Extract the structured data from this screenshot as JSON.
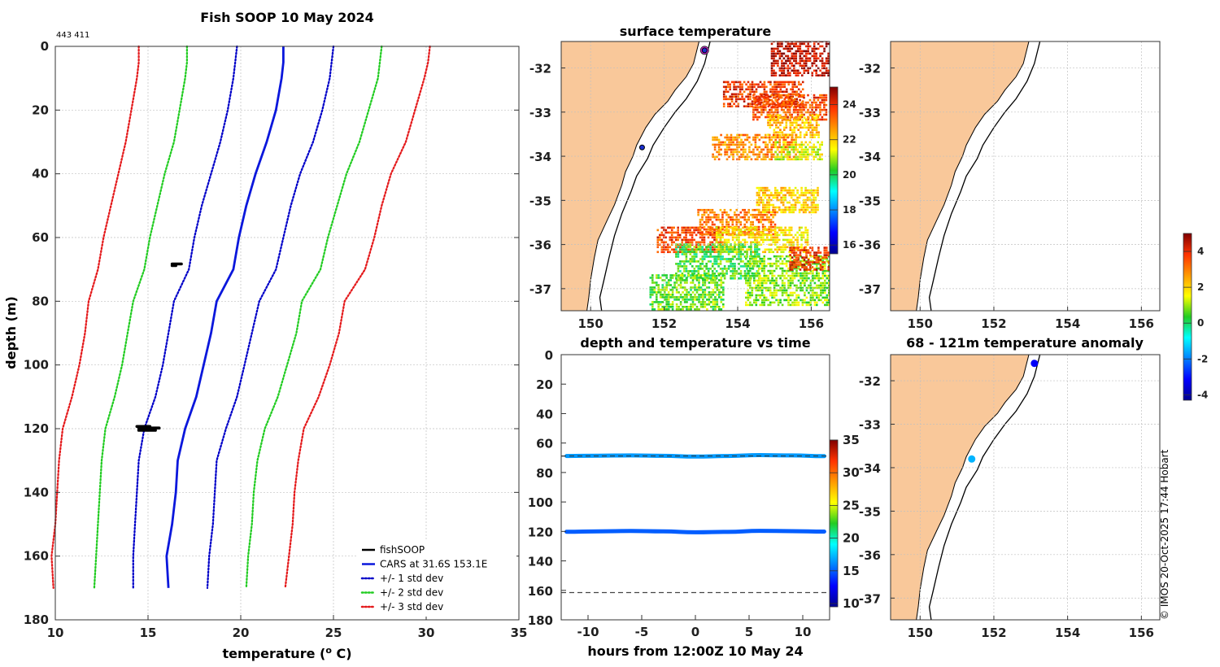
{
  "colors": {
    "land": "#f9c89a",
    "grid": "#c0c0c0",
    "cars": "#0a17dc",
    "sd1": "#0000c8",
    "sd2": "#22cc22",
    "sd3": "#e41a1c",
    "obs": "#000000",
    "time_series": "#2aa7df"
  },
  "chart_data": [
    {
      "type": "line",
      "id": "profile",
      "title": "Fish SOOP 10 May 2024",
      "annotation": "443 411",
      "xlabel": "temperature (",
      "xlabel_sup": "o",
      "xlabel_tail": " C)",
      "ylabel": "depth (m)",
      "xlim": [
        10,
        35
      ],
      "ylim": [
        0,
        180
      ],
      "xticks": [
        10,
        15,
        20,
        25,
        30,
        35
      ],
      "yticks": [
        0,
        20,
        40,
        60,
        80,
        100,
        120,
        140,
        160,
        180
      ],
      "depths": [
        0,
        5,
        10,
        20,
        30,
        40,
        50,
        60,
        70,
        80,
        90,
        100,
        110,
        120,
        130,
        140,
        150,
        160,
        170
      ],
      "series": [
        {
          "name": "CARS at 31.6S 153.1E",
          "style": "solid",
          "color": "#0a17dc",
          "values": [
            22.3,
            22.3,
            22.2,
            21.9,
            21.4,
            20.8,
            20.3,
            19.9,
            19.6,
            18.7,
            18.4,
            18.0,
            17.6,
            17.0,
            16.6,
            16.5,
            16.3,
            16.0,
            16.1
          ]
        },
        {
          "name": "+1 std dev",
          "style": "dotted",
          "color": "#0000c8",
          "values": [
            25.0,
            24.9,
            24.8,
            24.4,
            23.9,
            23.2,
            22.7,
            22.3,
            21.9,
            21.0,
            20.6,
            20.2,
            19.8,
            19.2,
            18.7,
            18.6,
            18.5,
            18.3,
            18.2
          ]
        },
        {
          "name": "-1 std dev",
          "style": "dotted",
          "color": "#0000c8",
          "values": [
            19.8,
            19.7,
            19.6,
            19.3,
            18.9,
            18.4,
            17.9,
            17.5,
            17.2,
            16.4,
            16.1,
            15.8,
            15.4,
            14.8,
            14.5,
            14.4,
            14.3,
            14.2,
            14.2
          ]
        },
        {
          "name": "+2 std dev",
          "style": "dotted",
          "color": "#22cc22",
          "values": [
            27.6,
            27.5,
            27.4,
            26.9,
            26.4,
            25.7,
            25.2,
            24.7,
            24.3,
            23.3,
            23.0,
            22.5,
            22.0,
            21.3,
            20.9,
            20.7,
            20.6,
            20.4,
            20.3
          ]
        },
        {
          "name": "-2 std dev",
          "style": "dotted",
          "color": "#22cc22",
          "values": [
            17.1,
            17.1,
            17.0,
            16.7,
            16.4,
            15.9,
            15.5,
            15.1,
            14.8,
            14.2,
            13.9,
            13.6,
            13.2,
            12.7,
            12.5,
            12.4,
            12.3,
            12.2,
            12.1
          ]
        },
        {
          "name": "+3 std dev",
          "style": "dotted",
          "color": "#e41a1c",
          "values": [
            30.2,
            30.1,
            29.9,
            29.4,
            28.9,
            28.1,
            27.6,
            27.2,
            26.7,
            25.6,
            25.3,
            24.8,
            24.2,
            23.4,
            23.1,
            22.9,
            22.8,
            22.6,
            22.4
          ]
        },
        {
          "name": "-3 std dev",
          "style": "dotted",
          "color": "#e41a1c",
          "values": [
            14.5,
            14.5,
            14.4,
            14.1,
            13.8,
            13.4,
            13.0,
            12.6,
            12.3,
            11.8,
            11.6,
            11.3,
            10.9,
            10.4,
            10.2,
            10.1,
            10.0,
            9.8,
            9.9
          ]
        }
      ],
      "observations": [
        {
          "depth": 68.3,
          "tmin": 16.3,
          "tmax": 16.8
        },
        {
          "depth": 68.8,
          "tmin": 16.3,
          "tmax": 16.5
        },
        {
          "depth": 119.3,
          "tmin": 14.4,
          "tmax": 15.1
        },
        {
          "depth": 119.8,
          "tmin": 14.5,
          "tmax": 15.6
        },
        {
          "depth": 120.5,
          "tmin": 14.5,
          "tmax": 15.4
        }
      ],
      "legend": {
        "placement": "bottom-right",
        "entries": [
          {
            "label": "fishSOOP",
            "color": "#000000",
            "style": "solid"
          },
          {
            "label": "CARS at 31.6S 153.1E",
            "color": "#0a17dc",
            "style": "solid"
          },
          {
            "label": "+/- 1 std dev",
            "color": "#0000c8",
            "style": "dotted"
          },
          {
            "label": "+/- 2 std dev",
            "color": "#22cc22",
            "style": "dotted"
          },
          {
            "label": "+/- 3 std dev",
            "color": "#e41a1c",
            "style": "dotted"
          }
        ]
      }
    },
    {
      "type": "heatmap",
      "id": "sst_map",
      "title": "surface temperature",
      "xlim": [
        149.2,
        156.5
      ],
      "ylim": [
        -37.5,
        -31.4
      ],
      "xticks": [
        150,
        152,
        154,
        156
      ],
      "yticks": [
        -32,
        -33,
        -34,
        -35,
        -36,
        -37
      ],
      "colorbar": {
        "range": [
          15.5,
          25
        ],
        "ticks": [
          16,
          18,
          20,
          22,
          24
        ]
      },
      "track_points": [
        {
          "lon": 153.1,
          "lat": -31.6
        },
        {
          "lon": 151.4,
          "lat": -33.8
        }
      ],
      "sst_patches": [
        {
          "lon": [
            154.9,
            156.5
          ],
          "lat": [
            -32.2,
            -31.4
          ],
          "temp": 24.5
        },
        {
          "lon": [
            153.6,
            155.8
          ],
          "lat": [
            -32.9,
            -32.3
          ],
          "temp": 23.8
        },
        {
          "lon": [
            154.4,
            156.4
          ],
          "lat": [
            -33.2,
            -32.6
          ],
          "temp": 23.5
        },
        {
          "lon": [
            154.8,
            156.2
          ],
          "lat": [
            -33.6,
            -33.1
          ],
          "temp": 22.2
        },
        {
          "lon": [
            153.3,
            155.6
          ],
          "lat": [
            -34.1,
            -33.5
          ],
          "temp": 22.8
        },
        {
          "lon": [
            155.0,
            156.3
          ],
          "lat": [
            -34.1,
            -33.7
          ],
          "temp": 21.3
        },
        {
          "lon": [
            154.5,
            156.2
          ],
          "lat": [
            -35.3,
            -34.7
          ],
          "temp": 22.0
        },
        {
          "lon": [
            152.9,
            155.0
          ],
          "lat": [
            -35.8,
            -35.2
          ],
          "temp": 23.0
        },
        {
          "lon": [
            151.8,
            153.6
          ],
          "lat": [
            -36.2,
            -35.6
          ],
          "temp": 23.6
        },
        {
          "lon": [
            153.4,
            155.9
          ],
          "lat": [
            -36.2,
            -35.6
          ],
          "temp": 21.8
        },
        {
          "lon": [
            152.3,
            154.6
          ],
          "lat": [
            -36.8,
            -36.0
          ],
          "temp": 20.3
        },
        {
          "lon": [
            154.2,
            156.5
          ],
          "lat": [
            -37.4,
            -36.3
          ],
          "temp": 20.8
        },
        {
          "lon": [
            151.6,
            153.6
          ],
          "lat": [
            -37.5,
            -36.7
          ],
          "temp": 20.6
        },
        {
          "lon": [
            155.4,
            156.5
          ],
          "lat": [
            -36.6,
            -36.1
          ],
          "temp": 23.9
        }
      ]
    },
    {
      "type": "scatter",
      "id": "map_upper_right",
      "xlim": [
        149.2,
        156.5
      ],
      "ylim": [
        -37.5,
        -31.4
      ],
      "xticks": [
        150,
        152,
        154,
        156
      ],
      "yticks": [
        -32,
        -33,
        -34,
        -35,
        -36,
        -37
      ],
      "colorbar": {
        "range": [
          -4.3,
          5
        ],
        "ticks": [
          4,
          2,
          0,
          -2,
          -4
        ]
      }
    },
    {
      "type": "scatter",
      "id": "time_series",
      "title": "depth and temperature vs time",
      "xlabel": "hours from 12:00Z 10 May 24",
      "xlim": [
        -12.5,
        12.5
      ],
      "ylim": [
        0,
        180
      ],
      "xticks": [
        -10,
        -5,
        0,
        5,
        10
      ],
      "yticks": [
        0,
        20,
        40,
        60,
        80,
        100,
        120,
        140,
        160,
        180
      ],
      "colorbar": {
        "range": [
          9.5,
          35
        ],
        "ticks": [
          35,
          30,
          25,
          20,
          15,
          10
        ]
      },
      "reference_depths": [
        68.8,
        161.5
      ],
      "series": [
        {
          "name": "upper",
          "hours": [
            -12,
            -9,
            -6,
            -3,
            0,
            3,
            6,
            9,
            12
          ],
          "depth": [
            68.8,
            68.6,
            68.4,
            68.7,
            69.2,
            68.8,
            68.2,
            68.4,
            68.9
          ],
          "temp": 16.5
        },
        {
          "name": "lower",
          "hours": [
            -12,
            -9,
            -6,
            -3,
            0,
            3,
            6,
            9,
            12
          ],
          "depth": [
            120.2,
            119.9,
            119.7,
            120.0,
            120.6,
            120.3,
            119.6,
            119.8,
            120.1
          ],
          "temp": 15.0
        }
      ]
    },
    {
      "type": "scatter",
      "id": "anomaly_map",
      "title": "68 - 121m temperature anomaly",
      "xlim": [
        149.2,
        156.5
      ],
      "ylim": [
        -37.5,
        -31.4
      ],
      "xticks": [
        150,
        152,
        154,
        156
      ],
      "yticks": [
        -32,
        -33,
        -34,
        -35,
        -36,
        -37
      ],
      "points": [
        {
          "lon": 153.1,
          "lat": -31.6,
          "anomaly": -3.2
        },
        {
          "lon": 151.4,
          "lat": -33.8,
          "anomaly": -1.5
        }
      ]
    }
  ],
  "credit": "© IMOS 20-Oct-2025 17:44 Hobart"
}
